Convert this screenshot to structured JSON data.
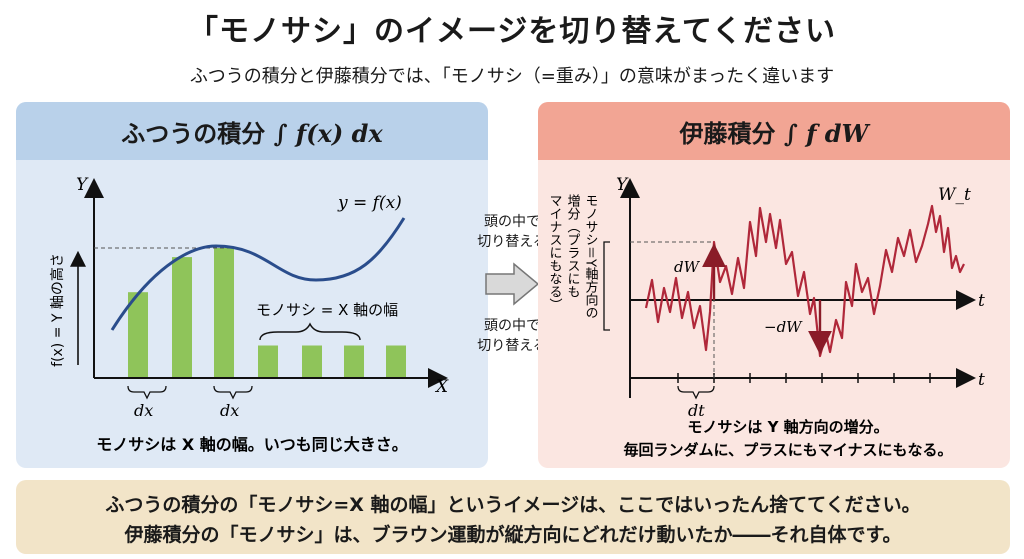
{
  "title": "「モノサシ」のイメージを切り替えてください",
  "subtitle": "ふつうの積分と伊藤積分では、「モノサシ（=重み）」の意味がまったく違います",
  "left": {
    "header_text": "ふつうの積分",
    "header_math": "∫ f(x) dx",
    "y_axis_label": "Y",
    "x_axis_label": "X",
    "y_side_label": "f(x) = Y 軸の高さ",
    "curve_label": "y = f(x)",
    "bar_label": "モノサシ = X 軸の幅",
    "dx_label_1": "dx",
    "dx_label_2": "dx",
    "caption": "モノサシは X 軸の幅。いつも同じ大きさ。",
    "bar_heights": [
      0.66,
      0.93,
      1.0,
      0.25,
      0.25,
      0.25,
      0.25
    ]
  },
  "middle": {
    "top_text_line1": "頭の中で",
    "top_text_line2": "切り替える",
    "bottom_text_line1": "頭の中で",
    "bottom_text_line2": "切り替える"
  },
  "right": {
    "header_text": "伊藤積分",
    "header_math": "∫ f dW",
    "y_axis_label": "Y",
    "t_axis_label_1": "t",
    "t_axis_label_2": "t",
    "wt_label": "W_t",
    "dw_label": "dW",
    "neg_dw_label": "−dW",
    "dt_label": "dt",
    "vertical_note_col1": "モノサシ＝Y軸方向の",
    "vertical_note_col2": "増分（プラスにも",
    "vertical_note_col3": "マイナスにもなる）",
    "caption_line1": "モノサシは Y 軸方向の増分。",
    "caption_line2": "毎回ランダムに、プラスにもマイナスにもなる。"
  },
  "bottom": {
    "line1": "ふつうの積分の「モノサシ=X 軸の幅」というイメージは、ここではいったん捨ててください。",
    "line2": "伊藤積分の「モノサシ」は、ブラウン運動が縦方向にどれだけ動いたか――それ自体です。"
  },
  "colors": {
    "bar_green": "#8fc45a",
    "curve_blue": "#2a4d8c",
    "path_red": "#b0283a",
    "left_panel_bg": "#dfe9f5",
    "right_panel_bg": "#fbe6e1"
  }
}
